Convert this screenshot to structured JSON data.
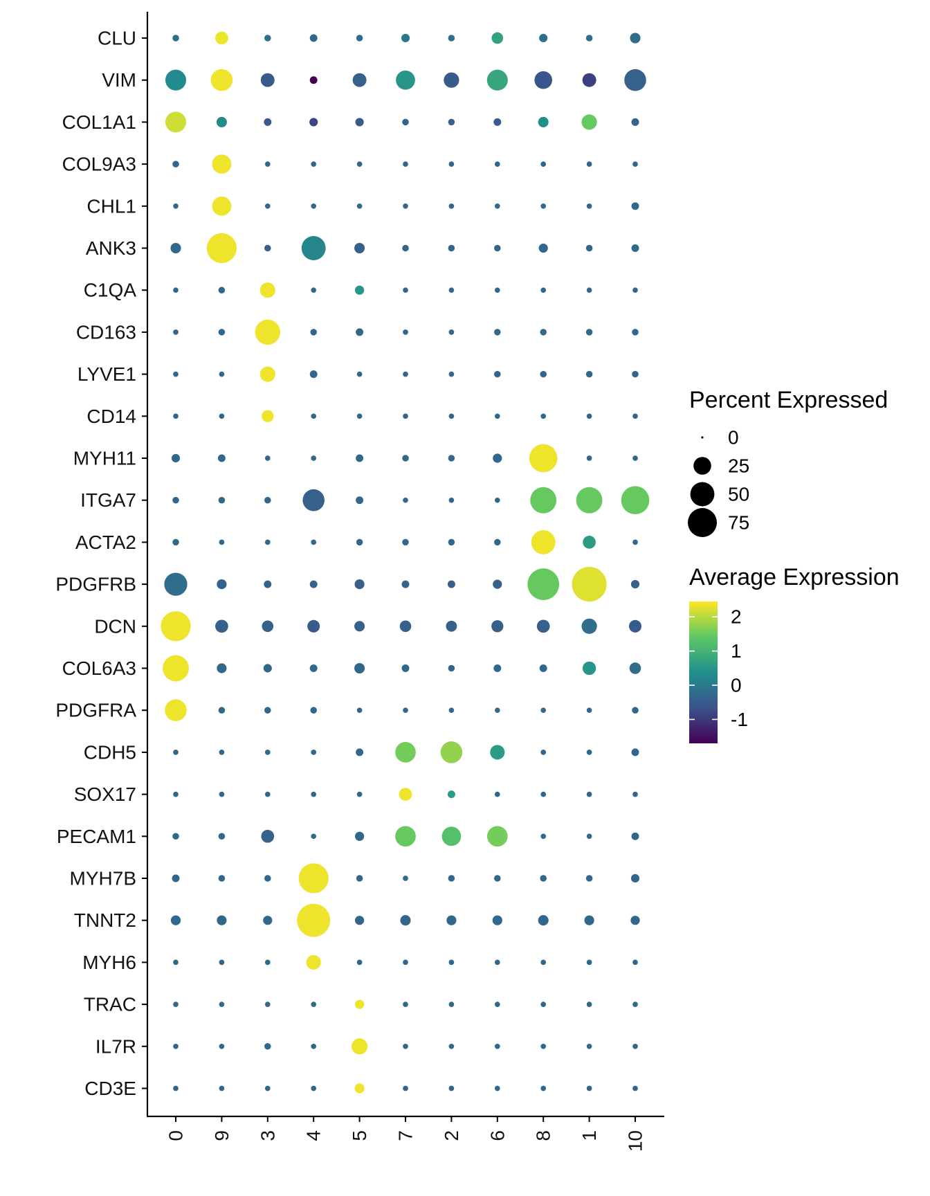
{
  "chart_data": {
    "type": "dotplot",
    "title": "",
    "xlabel": "",
    "ylabel": "",
    "clusters": [
      "0",
      "9",
      "3",
      "4",
      "5",
      "7",
      "2",
      "6",
      "8",
      "1",
      "10"
    ],
    "genes": [
      "CLU",
      "VIM",
      "COL1A1",
      "COL9A3",
      "CHL1",
      "ANK3",
      "C1QA",
      "CD163",
      "LYVE1",
      "CD14",
      "MYH11",
      "ITGA7",
      "ACTA2",
      "PDGFRB",
      "DCN",
      "COL6A3",
      "PDGFRA",
      "CDH5",
      "SOX17",
      "PECAM1",
      "MYH7B",
      "TNNT2",
      "MYH6",
      "TRAC",
      "IL7R",
      "CD3E"
    ],
    "pct_expressed": [
      [
        2,
        12,
        2,
        3,
        2,
        4,
        2,
        9,
        4,
        2,
        7
      ],
      [
        36,
        40,
        14,
        3,
        14,
        30,
        18,
        36,
        25,
        14,
        40
      ],
      [
        36,
        7,
        3,
        4,
        4,
        2,
        2,
        3,
        7,
        18,
        3
      ],
      [
        2,
        30,
        1,
        1,
        1,
        1,
        1,
        1,
        1,
        1,
        1
      ],
      [
        1,
        30,
        1,
        1,
        1,
        1,
        1,
        1,
        1,
        1,
        3
      ],
      [
        7,
        80,
        2,
        50,
        7,
        2,
        2,
        2,
        5,
        2,
        3
      ],
      [
        1,
        2,
        18,
        1,
        5,
        1,
        1,
        1,
        1,
        1,
        1
      ],
      [
        1,
        2,
        55,
        2,
        3,
        1,
        1,
        2,
        2,
        2,
        2
      ],
      [
        1,
        1,
        18,
        3,
        1,
        1,
        1,
        2,
        2,
        2,
        2
      ],
      [
        1,
        1,
        10,
        1,
        1,
        1,
        1,
        1,
        1,
        1,
        1
      ],
      [
        4,
        3,
        1,
        1,
        3,
        2,
        2,
        5,
        70,
        1,
        1
      ],
      [
        2,
        2,
        2,
        40,
        3,
        1,
        1,
        1,
        60,
        60,
        70
      ],
      [
        2,
        1,
        1,
        1,
        2,
        2,
        2,
        2,
        50,
        12,
        1
      ],
      [
        45,
        6,
        3,
        3,
        6,
        3,
        3,
        5,
        90,
        110,
        4
      ],
      [
        80,
        12,
        9,
        11,
        7,
        9,
        8,
        10,
        12,
        18,
        11
      ],
      [
        60,
        6,
        4,
        3,
        7,
        3,
        2,
        3,
        3,
        13,
        9
      ],
      [
        40,
        2,
        2,
        2,
        1,
        1,
        1,
        1,
        1,
        1,
        2
      ],
      [
        1,
        1,
        1,
        1,
        3,
        35,
        40,
        16,
        1,
        1,
        3
      ],
      [
        1,
        1,
        1,
        1,
        1,
        12,
        3,
        1,
        1,
        1,
        1
      ],
      [
        2,
        2,
        12,
        1,
        5,
        35,
        30,
        35,
        1,
        1,
        3
      ],
      [
        3,
        2,
        2,
        80,
        2,
        1,
        2,
        2,
        2,
        2,
        4
      ],
      [
        6,
        6,
        5,
        100,
        5,
        7,
        6,
        6,
        7,
        6,
        5
      ],
      [
        1,
        1,
        1,
        16,
        1,
        1,
        1,
        1,
        1,
        1,
        1
      ],
      [
        1,
        1,
        1,
        1,
        5,
        1,
        1,
        1,
        1,
        1,
        1
      ],
      [
        1,
        1,
        2,
        1,
        20,
        1,
        1,
        1,
        1,
        1,
        1
      ],
      [
        1,
        1,
        1,
        1,
        6,
        1,
        1,
        1,
        1,
        1,
        1
      ]
    ],
    "avg_expression": [
      [
        -0.2,
        2.4,
        -0.2,
        -0.3,
        -0.2,
        0.0,
        -0.2,
        0.7,
        -0.1,
        -0.2,
        -0.2
      ],
      [
        0.3,
        2.4,
        -0.5,
        -1.7,
        -0.4,
        0.5,
        -0.5,
        0.8,
        -0.6,
        -0.9,
        -0.4
      ],
      [
        2.2,
        0.3,
        -0.5,
        -0.8,
        -0.5,
        -0.4,
        -0.4,
        -0.5,
        0.4,
        1.5,
        -0.4
      ],
      [
        -0.3,
        2.4,
        -0.3,
        -0.3,
        -0.3,
        -0.3,
        -0.3,
        -0.3,
        -0.3,
        -0.3,
        -0.3
      ],
      [
        -0.3,
        2.4,
        -0.3,
        -0.3,
        -0.3,
        -0.3,
        -0.3,
        -0.3,
        -0.3,
        -0.3,
        -0.3
      ],
      [
        -0.3,
        2.4,
        -0.4,
        0.2,
        -0.4,
        -0.3,
        -0.3,
        -0.3,
        -0.3,
        -0.3,
        -0.3
      ],
      [
        -0.3,
        -0.3,
        2.4,
        -0.3,
        0.5,
        -0.3,
        -0.3,
        -0.3,
        -0.3,
        -0.3,
        -0.3
      ],
      [
        -0.3,
        -0.3,
        2.4,
        -0.3,
        -0.3,
        -0.3,
        -0.3,
        -0.3,
        -0.3,
        -0.3,
        -0.3
      ],
      [
        -0.3,
        -0.3,
        2.4,
        -0.3,
        -0.3,
        -0.3,
        -0.3,
        -0.3,
        -0.3,
        -0.3,
        -0.3
      ],
      [
        -0.3,
        -0.3,
        2.4,
        -0.3,
        -0.3,
        -0.3,
        -0.3,
        -0.3,
        -0.3,
        -0.3,
        -0.3
      ],
      [
        -0.3,
        -0.3,
        -0.3,
        -0.3,
        -0.3,
        -0.3,
        -0.3,
        -0.3,
        2.4,
        -0.3,
        -0.3
      ],
      [
        -0.3,
        -0.3,
        -0.3,
        -0.4,
        -0.3,
        -0.3,
        -0.3,
        -0.3,
        1.5,
        1.5,
        1.5
      ],
      [
        -0.3,
        -0.3,
        -0.3,
        -0.3,
        -0.3,
        -0.3,
        -0.3,
        -0.3,
        2.4,
        0.6,
        -0.3
      ],
      [
        -0.2,
        -0.4,
        -0.4,
        -0.4,
        -0.4,
        -0.4,
        -0.4,
        -0.4,
        1.5,
        2.3,
        -0.4
      ],
      [
        2.4,
        -0.4,
        -0.4,
        -0.5,
        -0.4,
        -0.4,
        -0.4,
        -0.4,
        -0.4,
        -0.2,
        -0.5
      ],
      [
        2.4,
        -0.3,
        -0.3,
        -0.3,
        -0.3,
        -0.3,
        -0.3,
        -0.3,
        -0.3,
        0.5,
        -0.2
      ],
      [
        2.4,
        -0.3,
        -0.3,
        -0.3,
        -0.3,
        -0.3,
        -0.3,
        -0.3,
        -0.3,
        -0.3,
        -0.3
      ],
      [
        -0.3,
        -0.3,
        -0.3,
        -0.3,
        -0.3,
        1.6,
        1.8,
        0.6,
        -0.3,
        -0.3,
        -0.3
      ],
      [
        -0.3,
        -0.3,
        -0.3,
        -0.3,
        -0.3,
        2.4,
        0.6,
        -0.3,
        -0.3,
        -0.3,
        -0.3
      ],
      [
        -0.3,
        -0.3,
        -0.4,
        -0.3,
        -0.3,
        1.5,
        1.3,
        1.6,
        -0.3,
        -0.3,
        -0.3
      ],
      [
        -0.3,
        -0.3,
        -0.3,
        2.4,
        -0.3,
        -0.3,
        -0.3,
        -0.3,
        -0.3,
        -0.3,
        -0.3
      ],
      [
        -0.3,
        -0.3,
        -0.3,
        2.4,
        -0.3,
        -0.3,
        -0.3,
        -0.3,
        -0.3,
        -0.3,
        -0.3
      ],
      [
        -0.3,
        -0.3,
        -0.3,
        2.4,
        -0.3,
        -0.3,
        -0.3,
        -0.3,
        -0.3,
        -0.3,
        -0.3
      ],
      [
        -0.3,
        -0.3,
        -0.3,
        -0.3,
        2.4,
        -0.3,
        -0.3,
        -0.3,
        -0.3,
        -0.3,
        -0.3
      ],
      [
        -0.3,
        -0.3,
        -0.3,
        -0.3,
        2.4,
        -0.3,
        -0.3,
        -0.3,
        -0.3,
        -0.3,
        -0.3
      ],
      [
        -0.3,
        -0.3,
        -0.3,
        -0.3,
        2.4,
        -0.3,
        -0.3,
        -0.3,
        -0.3,
        -0.3,
        -0.3
      ]
    ],
    "size_legend": {
      "title": "Percent Expressed",
      "values": [
        0,
        25,
        50,
        75
      ],
      "labels": [
        "0",
        "25",
        "50",
        "75"
      ]
    },
    "color_legend": {
      "title": "Average Expression",
      "range": [
        -1.7,
        2.5
      ],
      "ticks": [
        2,
        1,
        0,
        -1
      ],
      "labels": [
        "2",
        "1",
        "0",
        "-1"
      ],
      "palette": [
        "#440154",
        "#3b528b",
        "#21908d",
        "#5dc863",
        "#fde725"
      ]
    }
  }
}
